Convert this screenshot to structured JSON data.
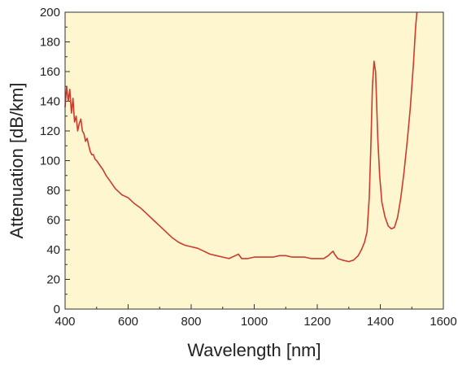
{
  "chart_data": {
    "type": "line",
    "xlabel": "Wavelength [nm]",
    "ylabel": "Attenuation [dB/km]",
    "xlim": [
      400,
      1600
    ],
    "ylim": [
      0,
      200
    ],
    "x_ticks": [
      400,
      600,
      800,
      1000,
      1200,
      1400,
      1600
    ],
    "y_ticks": [
      0,
      20,
      40,
      60,
      80,
      100,
      120,
      140,
      160,
      180,
      200
    ],
    "grid": false,
    "legend": "none",
    "colors": {
      "plot_background": "#fdf6cf",
      "line": "#cc3b2e",
      "axis": "#333333"
    },
    "series": [
      {
        "x": [
          400,
          405,
          410,
          415,
          420,
          425,
          430,
          435,
          440,
          445,
          450,
          455,
          460,
          465,
          470,
          475,
          480,
          485,
          490,
          495,
          500,
          510,
          520,
          530,
          540,
          550,
          560,
          570,
          580,
          590,
          600,
          620,
          640,
          660,
          680,
          700,
          720,
          740,
          760,
          780,
          800,
          820,
          840,
          860,
          880,
          900,
          920,
          940,
          950,
          960,
          980,
          1000,
          1020,
          1040,
          1060,
          1080,
          1100,
          1120,
          1140,
          1160,
          1180,
          1200,
          1220,
          1235,
          1245,
          1250,
          1255,
          1265,
          1280,
          1300,
          1315,
          1330,
          1340,
          1350,
          1358,
          1365,
          1370,
          1375,
          1380,
          1385,
          1388,
          1392,
          1398,
          1405,
          1415,
          1425,
          1435,
          1445,
          1455,
          1465,
          1475,
          1485,
          1495,
          1505,
          1512,
          1516
        ],
        "y": [
          136,
          150,
          140,
          148,
          132,
          142,
          126,
          130,
          120,
          125,
          128,
          120,
          118,
          113,
          115,
          110,
          106,
          104,
          104,
          101,
          100,
          97,
          94,
          90,
          87,
          84,
          81,
          79,
          77,
          76,
          75,
          71,
          68,
          64,
          60,
          56,
          52,
          48,
          45,
          43,
          42,
          41,
          39,
          37,
          36,
          35,
          34,
          36,
          37,
          34,
          34,
          35,
          35,
          35,
          35,
          36,
          36,
          35,
          35,
          35,
          34,
          34,
          34,
          36,
          38,
          39,
          37,
          34,
          33,
          32,
          33,
          36,
          40,
          45,
          52,
          75,
          110,
          150,
          167,
          160,
          140,
          115,
          90,
          72,
          62,
          56,
          54,
          55,
          62,
          75,
          92,
          112,
          135,
          165,
          190,
          200
        ]
      }
    ]
  }
}
